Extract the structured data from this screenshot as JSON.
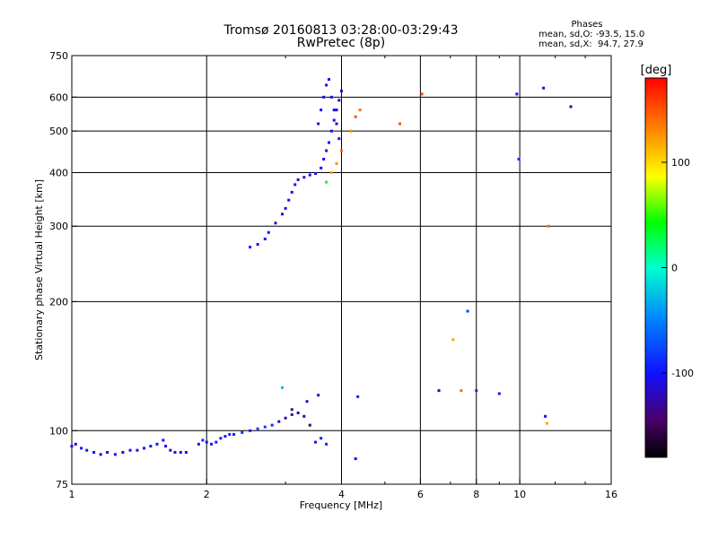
{
  "header": {
    "title_line1": "Tromsø 20160813 03:28:00-03:29:43",
    "title_line2": "RwPretec (8p)",
    "phases_heading": "Phases",
    "phases_o": "mean, sd,O: -93.5, 15.0",
    "phases_x": "mean, sd,X:  94.7, 27.9"
  },
  "chart_data": {
    "type": "scatter",
    "xlabel": "Frequency [MHz]",
    "ylabel": "Stationary phase Virtual Height [km]",
    "xscale": "log",
    "yscale": "log",
    "xlim": [
      1,
      16
    ],
    "ylim": [
      75,
      750
    ],
    "xticks": [
      1,
      2,
      4,
      6,
      8,
      10,
      16
    ],
    "xtick_labels": [
      "1",
      "2",
      "4",
      "6",
      "8",
      "10",
      "16"
    ],
    "yticks": [
      75,
      100,
      200,
      300,
      400,
      500,
      600,
      750
    ],
    "ytick_labels": [
      "75",
      "100",
      "200",
      "300",
      "400",
      "500",
      "600",
      "750"
    ],
    "grid": true,
    "colorbar": {
      "label": "[deg]",
      "range": [
        -180,
        180
      ],
      "ticks": [
        -100,
        0,
        100
      ],
      "tick_labels": [
        "-100",
        "0",
        "100"
      ]
    },
    "series": [
      {
        "points": [
          [
            1.0,
            92,
            -105
          ],
          [
            1.02,
            93,
            -108
          ],
          [
            1.05,
            91,
            -102
          ],
          [
            1.08,
            90,
            -110
          ],
          [
            1.12,
            89,
            -104
          ],
          [
            1.16,
            88,
            -106
          ],
          [
            1.2,
            89,
            -112
          ],
          [
            1.25,
            88,
            -100
          ],
          [
            1.3,
            89,
            -108
          ],
          [
            1.35,
            90,
            -104
          ],
          [
            1.4,
            90,
            -110
          ],
          [
            1.45,
            91,
            -102
          ],
          [
            1.5,
            92,
            -106
          ],
          [
            1.55,
            93,
            -100
          ],
          [
            1.6,
            95,
            -108
          ],
          [
            1.62,
            92,
            -104
          ],
          [
            1.66,
            90,
            -110
          ],
          [
            1.7,
            89,
            -106
          ],
          [
            1.75,
            89,
            -102
          ],
          [
            1.8,
            89,
            -108
          ],
          [
            1.92,
            93,
            -96
          ],
          [
            1.96,
            95,
            -90
          ],
          [
            2.0,
            94,
            -104
          ],
          [
            2.05,
            93,
            -100
          ],
          [
            2.1,
            94,
            -96
          ],
          [
            2.15,
            96,
            -92
          ],
          [
            2.2,
            97,
            -98
          ],
          [
            2.25,
            98,
            -90
          ],
          [
            2.3,
            98,
            -94
          ],
          [
            2.4,
            99,
            -88
          ],
          [
            2.5,
            100,
            -96
          ],
          [
            2.6,
            101,
            -84
          ],
          [
            2.7,
            102,
            -80
          ],
          [
            2.8,
            103,
            -86
          ],
          [
            2.9,
            105,
            -120
          ],
          [
            3.0,
            107,
            -130
          ],
          [
            3.1,
            109,
            -126
          ],
          [
            3.2,
            110,
            -118
          ],
          [
            3.3,
            108,
            -122
          ],
          [
            3.4,
            103,
            -150
          ],
          [
            3.5,
            94,
            -100
          ],
          [
            3.6,
            96,
            -96
          ],
          [
            3.1,
            112,
            -140
          ],
          [
            3.35,
            117,
            -110
          ],
          [
            3.7,
            93,
            -90
          ],
          [
            4.3,
            86,
            -102
          ],
          [
            2.95,
            126,
            -30
          ],
          [
            3.55,
            121,
            -112
          ]
        ]
      },
      {
        "points": [
          [
            2.5,
            268,
            -98
          ],
          [
            2.6,
            272,
            -102
          ],
          [
            2.7,
            280,
            -96
          ],
          [
            2.75,
            290,
            -104
          ],
          [
            2.85,
            305,
            -106
          ],
          [
            2.95,
            320,
            -108
          ],
          [
            3.0,
            330,
            -110
          ],
          [
            3.05,
            345,
            -104
          ],
          [
            3.1,
            360,
            -112
          ],
          [
            3.15,
            375,
            -108
          ],
          [
            3.2,
            385,
            -110
          ],
          [
            3.3,
            390,
            -106
          ],
          [
            3.4,
            395,
            -112
          ],
          [
            3.5,
            398,
            -104
          ],
          [
            3.6,
            410,
            -108
          ],
          [
            3.65,
            430,
            -102
          ],
          [
            3.7,
            450,
            -110
          ],
          [
            3.75,
            470,
            -106
          ],
          [
            3.8,
            500,
            -104
          ],
          [
            3.85,
            530,
            -108
          ],
          [
            3.9,
            560,
            -112
          ],
          [
            3.95,
            590,
            -106
          ],
          [
            4.0,
            620,
            -104
          ],
          [
            3.55,
            520,
            -106
          ],
          [
            3.6,
            560,
            -108
          ],
          [
            3.65,
            600,
            -110
          ],
          [
            3.7,
            640,
            -102
          ],
          [
            3.75,
            660,
            -104
          ],
          [
            3.8,
            600,
            -112
          ],
          [
            3.85,
            560,
            -108
          ],
          [
            3.9,
            520,
            -106
          ],
          [
            3.95,
            480,
            -104
          ],
          [
            3.7,
            380,
            40
          ],
          [
            3.8,
            400,
            120
          ],
          [
            3.9,
            420,
            130
          ],
          [
            4.0,
            450,
            140
          ],
          [
            4.2,
            500,
            130
          ],
          [
            4.3,
            540,
            150
          ],
          [
            4.4,
            560,
            140
          ]
        ]
      },
      {
        "points": [
          [
            5.4,
            520,
            150
          ],
          [
            6.05,
            610,
            150
          ],
          [
            6.6,
            124,
            -140
          ],
          [
            7.1,
            163,
            120
          ],
          [
            7.4,
            124,
            140
          ],
          [
            7.65,
            190,
            -80
          ],
          [
            8.0,
            124,
            -90
          ],
          [
            9.0,
            122,
            -100
          ],
          [
            9.85,
            610,
            -100
          ],
          [
            9.95,
            430,
            -90
          ],
          [
            11.3,
            630,
            -110
          ],
          [
            11.6,
            300,
            140
          ],
          [
            13.0,
            570,
            -120
          ],
          [
            11.4,
            108,
            -100
          ],
          [
            11.5,
            104,
            120
          ],
          [
            4.35,
            120,
            -90
          ]
        ]
      }
    ]
  }
}
